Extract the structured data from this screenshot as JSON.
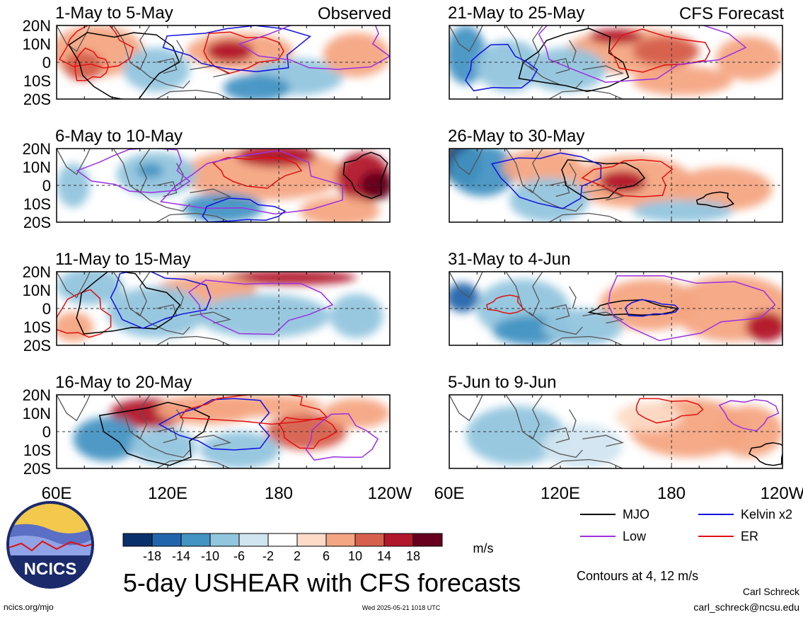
{
  "figure": {
    "title": "5-day USHEAR with CFS forecasts",
    "observed_label": "Observed",
    "forecast_label": "CFS Forecast",
    "units": "m/s",
    "contour_note": "Contours at 4, 12 m/s",
    "author": "Carl Schreck",
    "email": "carl_schreck@ncsu.edu",
    "site": "ncics.org/mjo",
    "timestamp": "Wed 2025-05-21 1018 UTC",
    "logo_text": "NCICS"
  },
  "axes": {
    "lat_ticks": [
      "20N",
      "10N",
      "0",
      "10S",
      "20S"
    ],
    "lon_ticks": [
      "60E",
      "120E",
      "180",
      "120W"
    ]
  },
  "panels": [
    {
      "title": "1-May to 5-May",
      "kind": "observed"
    },
    {
      "title": "6-May to 10-May",
      "kind": "observed"
    },
    {
      "title": "11-May to 15-May",
      "kind": "observed"
    },
    {
      "title": "16-May to 20-May",
      "kind": "observed"
    },
    {
      "title": "21-May to 25-May",
      "kind": "forecast"
    },
    {
      "title": "26-May to 30-May",
      "kind": "forecast"
    },
    {
      "title": "31-May to 4-Jun",
      "kind": "forecast"
    },
    {
      "title": "5-Jun to 9-Jun",
      "kind": "forecast"
    }
  ],
  "colorbar": {
    "labels": [
      "-18",
      "-14",
      "-10",
      "-6",
      "-2",
      "2",
      "6",
      "10",
      "14",
      "18"
    ],
    "colors": [
      "#08306b",
      "#2166ac",
      "#4393c3",
      "#92c5de",
      "#d1e5f0",
      "#ffffff",
      "#fddbc7",
      "#f4a582",
      "#d6604d",
      "#b2182b",
      "#67001f"
    ]
  },
  "legend": [
    {
      "label": "MJO",
      "color": "#000000"
    },
    {
      "label": "Kelvin x2",
      "color": "#1010e0"
    },
    {
      "label": "Low",
      "color": "#9b30e0"
    },
    {
      "label": "ER",
      "color": "#e01010"
    }
  ]
}
